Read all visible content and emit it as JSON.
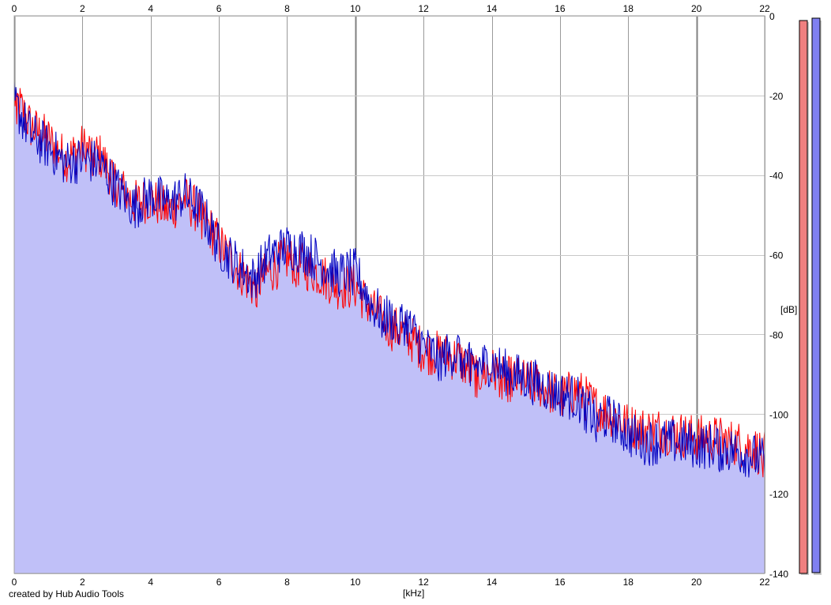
{
  "credit": "created by Hub Audio Tools",
  "chart_data": {
    "type": "area",
    "title": "",
    "xlabel": "[kHz]",
    "ylabel": "[dB]",
    "xlim": [
      0,
      22
    ],
    "ylim": [
      -140,
      0
    ],
    "x_ticks": [
      0,
      2,
      4,
      6,
      8,
      10,
      12,
      14,
      16,
      18,
      20,
      22
    ],
    "y_ticks": [
      0,
      -20,
      -40,
      -60,
      -80,
      -100,
      -120,
      -140
    ],
    "grid": true,
    "colors": {
      "fill": "#c0c0f8",
      "left": "#ff0000",
      "right": "#0000c0",
      "grid": "#c8c8c8",
      "grid_major": "#808080"
    },
    "x": [
      0,
      0.5,
      1,
      1.5,
      2,
      2.5,
      3,
      3.5,
      4,
      4.5,
      5,
      5.5,
      6,
      6.5,
      7,
      7.5,
      8,
      8.5,
      9,
      9.5,
      10,
      10.5,
      11,
      11.5,
      12,
      12.5,
      13,
      13.5,
      14,
      14.5,
      15,
      15.5,
      16,
      16.5,
      17,
      17.5,
      18,
      18.5,
      19,
      19.5,
      20,
      20.5,
      21,
      21.5,
      22
    ],
    "series": [
      {
        "name": "",
        "color": "#ff0000",
        "values": [
          -20,
          -28,
          -31,
          -36,
          -33,
          -35,
          -42,
          -47,
          -46,
          -49,
          -46,
          -50,
          -57,
          -63,
          -68,
          -64,
          -61,
          -63,
          -65,
          -68,
          -68,
          -74,
          -78,
          -80,
          -84,
          -85,
          -86,
          -90,
          -89,
          -91,
          -92,
          -93,
          -96,
          -94,
          -98,
          -100,
          -103,
          -104,
          -104,
          -105,
          -106,
          -106,
          -107,
          -108,
          -110
        ]
      },
      {
        "name": "",
        "color": "#0000c0",
        "values": [
          -22,
          -30,
          -33,
          -37,
          -36,
          -37,
          -43,
          -48,
          -45,
          -47,
          -45,
          -49,
          -58,
          -62,
          -66,
          -60,
          -58,
          -59,
          -62,
          -65,
          -64,
          -73,
          -76,
          -77,
          -83,
          -86,
          -84,
          -88,
          -87,
          -90,
          -91,
          -93,
          -95,
          -96,
          -101,
          -101,
          -105,
          -107,
          -107,
          -107,
          -108,
          -108,
          -109,
          -110,
          -112
        ]
      }
    ],
    "meters": {
      "left": -140,
      "right": -140,
      "left_color": "#f08080",
      "right_color": "#8080f0"
    }
  }
}
